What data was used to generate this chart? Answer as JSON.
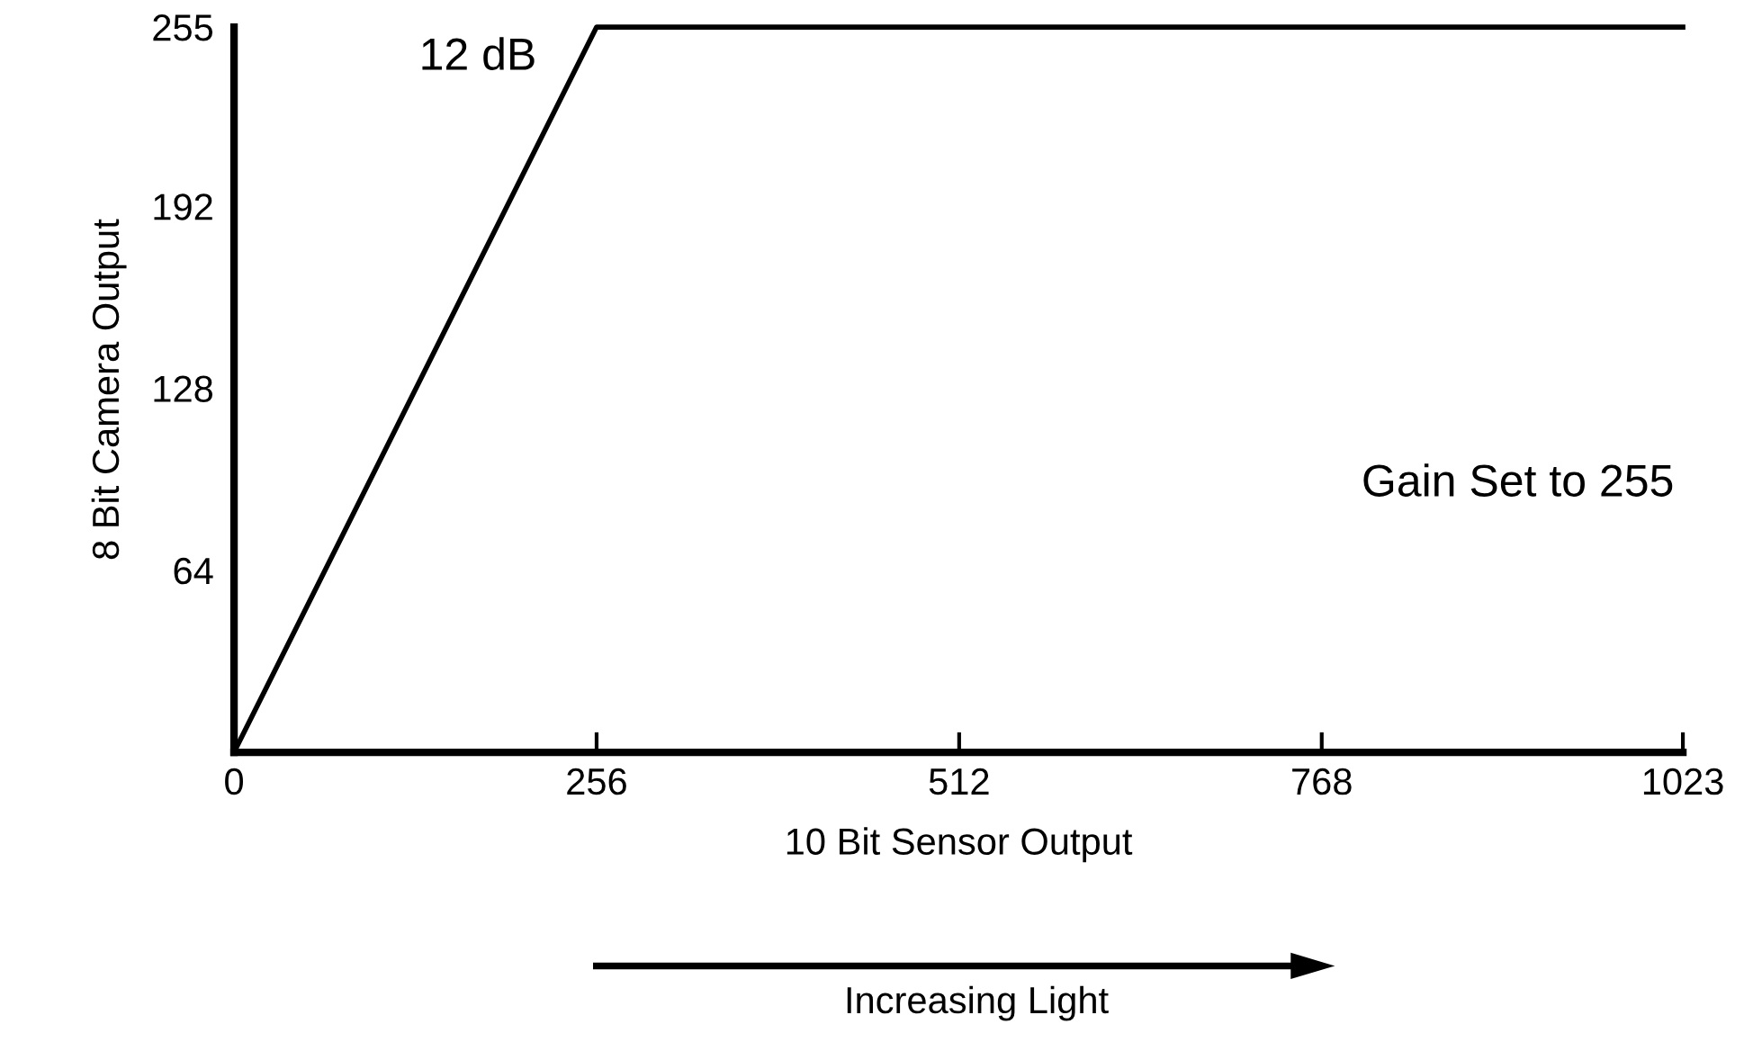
{
  "chart_data": {
    "type": "line",
    "xlabel": "10 Bit Sensor Output",
    "ylabel": "8 Bit Camera Output",
    "x": [
      0,
      256,
      1023
    ],
    "series": [
      {
        "color": "#000000",
        "values": [
          0,
          255,
          255
        ]
      }
    ],
    "xlim": [
      0,
      1023
    ],
    "ylim": [
      0,
      255
    ],
    "xticks": [
      0,
      256,
      512,
      768,
      1023
    ],
    "yticks": [
      64,
      128,
      192,
      255
    ],
    "grid": false,
    "legend": false,
    "marker": "none",
    "line_style": "solid",
    "annotations": [
      {
        "text": "12 dB",
        "x": 256,
        "y": 255
      },
      "Gain Set to 255",
      "Increasing Light"
    ]
  }
}
